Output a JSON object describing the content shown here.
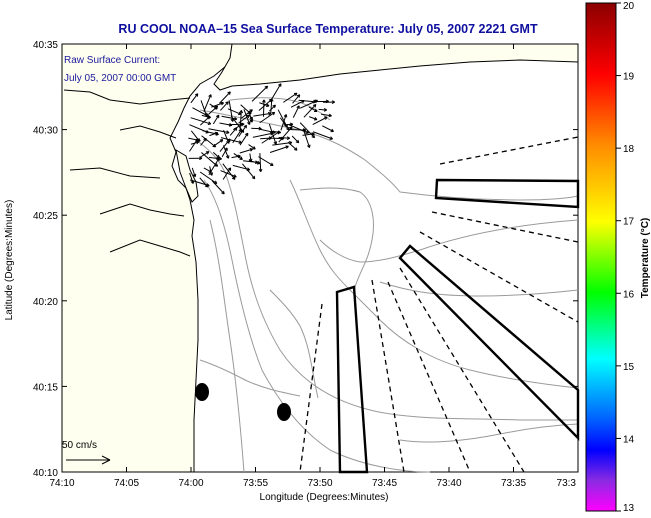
{
  "title": "RU COOL  NOAA–15  Sea Surface Temperature:  July 05, 2007 2221 GMT",
  "current_label": {
    "line1": "Raw Surface Current:",
    "line2": "July 05, 2007 00:00 GMT"
  },
  "scale_arrow_label": "50 cm/s",
  "x_axis": {
    "label": "Longitude (Degrees:Minutes)",
    "ticks": [
      "74:10",
      "74:05",
      "74:00",
      "73:55",
      "73:50",
      "73:45",
      "73:40",
      "73:35",
      "73:3"
    ]
  },
  "y_axis": {
    "label": "Latitude (Degrees:Minutes)",
    "ticks": [
      "40:35",
      "40:30",
      "40:25",
      "40:20",
      "40:15",
      "40:10"
    ]
  },
  "colorbar": {
    "label": "Temperature (°C)",
    "ticks": [
      "20",
      "19",
      "18",
      "17",
      "16",
      "15",
      "14",
      "13"
    ],
    "colors": [
      "#8b0000",
      "#ff0000",
      "#ff8c00",
      "#ffff00",
      "#00ff00",
      "#00ffff",
      "#0000ff",
      "#ff00ff"
    ]
  },
  "map_features": {
    "land_color": "#fffff0",
    "line_color": "#000000",
    "bathymetry_color": "#999999",
    "markers": 2
  }
}
